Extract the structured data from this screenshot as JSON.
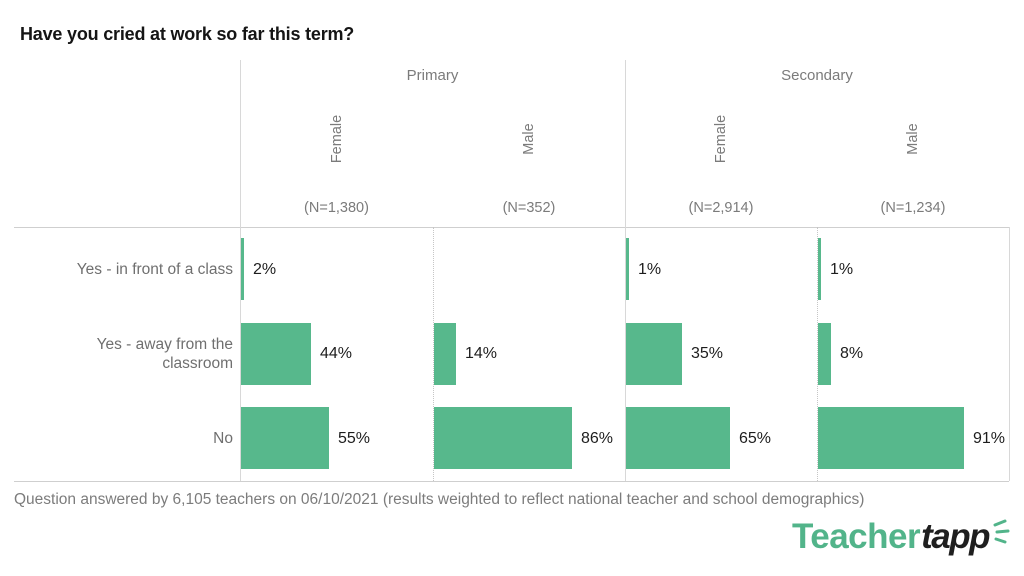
{
  "title": "Have you cried at work so far this term?",
  "footer": "Question answered by 6,105 teachers on 06/10/2021 (results weighted to reflect national teacher and school demographics)",
  "logo": {
    "teacher": "Teacher",
    "tapp": "tapp"
  },
  "colors": {
    "bar_green": "#57b88c",
    "logo_green": "#52b48a",
    "grid_line": "#d8d8d8",
    "header_text": "#7b7b7b",
    "value_text": "#1d1d1d"
  },
  "chart_data": {
    "type": "bar",
    "orientation": "horizontal",
    "unit": "%",
    "xlim": [
      0,
      100
    ],
    "grid": "column-baselines-only",
    "categories": [
      "Yes - in front of a class",
      "Yes - away from the classroom",
      "No"
    ],
    "groups": [
      {
        "label": "Primary",
        "columns": [
          {
            "label": "Female",
            "n_label": "(N=1,380)",
            "values": [
              2,
              44,
              55
            ],
            "value_labels": [
              "2%",
              "44%",
              "55%"
            ]
          },
          {
            "label": "Male",
            "n_label": "(N=352)",
            "values": [
              null,
              14,
              86
            ],
            "value_labels": [
              "",
              "14%",
              "86%"
            ]
          }
        ]
      },
      {
        "label": "Secondary",
        "columns": [
          {
            "label": "Female",
            "n_label": "(N=2,914)",
            "values": [
              1,
              35,
              65
            ],
            "value_labels": [
              "1%",
              "35%",
              "65%"
            ]
          },
          {
            "label": "Male",
            "n_label": "(N=1,234)",
            "values": [
              1,
              8,
              91
            ],
            "value_labels": [
              "1%",
              "8%",
              "91%"
            ]
          }
        ]
      }
    ]
  }
}
